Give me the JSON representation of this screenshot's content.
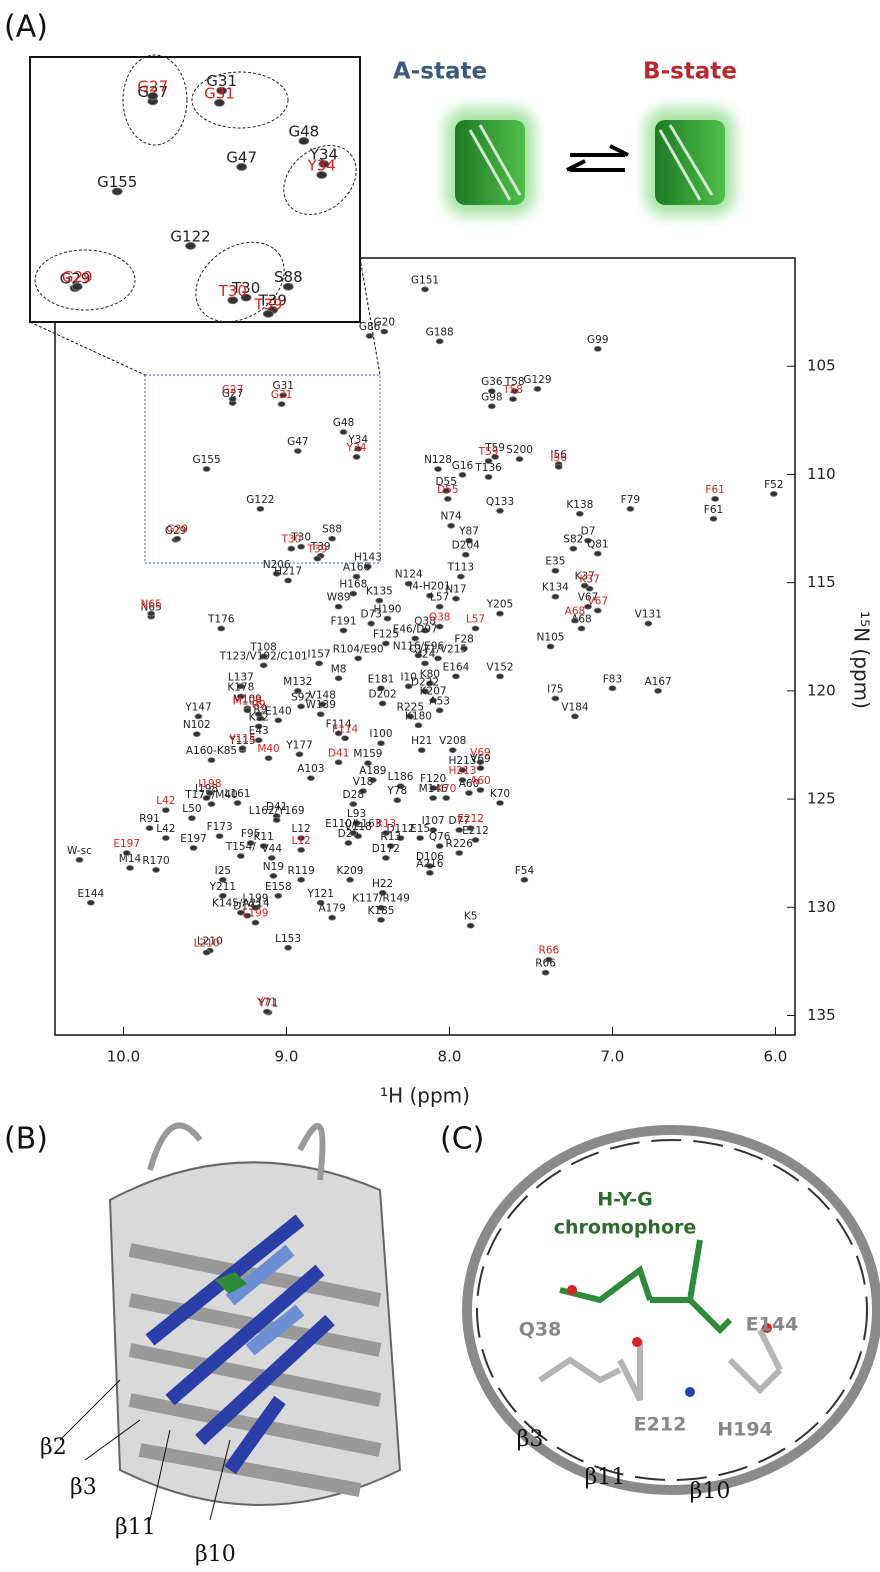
{
  "figure": {
    "panel_a": "(A)",
    "panel_b": "(B)",
    "panel_c": "(C)",
    "panel_b_labels": [
      "β2",
      "β3",
      "β11",
      "β10"
    ],
    "panel_c_title": [
      "H-Y-G",
      "chromophore"
    ],
    "panel_c_residues": [
      "Q38",
      "E144",
      "E212",
      "H194"
    ],
    "panel_c_strands": [
      "β3",
      "β11",
      "β10"
    ]
  },
  "chart_data": {
    "type": "scatter",
    "xlabel": "¹H (ppm)",
    "ylabel": "¹⁵N (ppm)",
    "xlim": [
      10.42,
      5.88
    ],
    "ylim": [
      100,
      135.9
    ],
    "y_inverted": true,
    "xticks": [
      {
        "value": 10,
        "label": "10.0"
      },
      {
        "value": 9,
        "label": "9.0"
      },
      {
        "value": 8,
        "label": "8.0"
      },
      {
        "value": 7,
        "label": "7.0"
      },
      {
        "value": 6,
        "label": "6.0"
      }
    ],
    "yticks": [
      105,
      110,
      115,
      120,
      125,
      130,
      135
    ],
    "inset": {
      "xlim": [
        9.86,
        8.42
      ],
      "ylim": [
        105.37,
        114.03
      ]
    },
    "series": [
      {
        "name": "A-state",
        "color": "#222222",
        "labels": [
          "G151",
          "G20",
          "G86",
          "G188",
          "G99",
          "G36",
          "T58",
          "G129",
          "G98",
          "G27",
          "G31",
          "G48",
          "G47",
          "Y34",
          "G155",
          "G122",
          "G29",
          "T30",
          "S88",
          "T39",
          "H143",
          "T59",
          "S200",
          "I56",
          "N128",
          "G16",
          "T136",
          "D55",
          "Q133",
          "K138",
          "F79",
          "F61",
          "F52",
          "N74",
          "Y87",
          "D7",
          "Q81",
          "S82",
          "D204",
          "E35",
          "K37",
          "T113",
          "N206",
          "H217",
          "A166",
          "N124",
          "I4-H201",
          "N17",
          "K134",
          "H168",
          "K135",
          "W89",
          "L57",
          "Q38",
          "H190",
          "N65",
          "D73",
          "V67",
          "V131",
          "Y205",
          "T176",
          "F191",
          "A68",
          "F125",
          "F28",
          "T108",
          "N105",
          "T123/V192/C101",
          "I157",
          "R104/E90",
          "V24",
          "V152",
          "L137",
          "M8",
          "M132",
          "E181",
          "I10",
          "K80",
          "E164",
          "F83",
          "A167",
          "M109",
          "K178",
          "S92",
          "V148",
          "D222",
          "K207",
          "D202",
          "R225",
          "A53",
          "I75",
          "Y147",
          "R9",
          "K32",
          "E140",
          "W139",
          "V184",
          "N102",
          "K180",
          "E43",
          "F114",
          "Y115",
          "A160-K85",
          "Y177",
          "I100",
          "H21",
          "V208",
          "V69",
          "M159",
          "A103",
          "A189",
          "H213",
          "V18",
          "L186",
          "I198",
          "L161",
          "F120",
          "M146",
          "Y78",
          "D28",
          "A60",
          "K70",
          "D41",
          "L93",
          "V118",
          "D112",
          "I107",
          "D77",
          "L50",
          "R91",
          "L42",
          "F173",
          "F95",
          "K11",
          "E15",
          "E212",
          "W-sc",
          "E197",
          "T154/",
          "L12",
          "V44",
          "D26",
          "R13",
          "Q76",
          "R226",
          "D172",
          "D106",
          "M14",
          "R170",
          "I25",
          "N19",
          "R119",
          "K209",
          "A216",
          "F54",
          "H22",
          "E158",
          "Y121",
          "Y211",
          "E144",
          "K117/R149",
          "D193",
          "L199",
          "A179",
          "K185",
          "K5",
          "K145/A214",
          "L210",
          "L153",
          "R66",
          "Y71",
          "L162/Y169",
          "E110/L163",
          "E46/D97",
          "N116/E96",
          "C171/V215",
          "T175/M40"
        ],
        "x": [
          8.15,
          8.4,
          8.49,
          8.06,
          7.09,
          7.74,
          7.6,
          7.46,
          7.74,
          9.33,
          9.02,
          8.65,
          8.93,
          8.56,
          9.49,
          9.16,
          9.68,
          8.91,
          8.72,
          8.79,
          8.5,
          7.72,
          7.57,
          7.33,
          8.07,
          7.92,
          7.76,
          8.02,
          7.69,
          7.2,
          6.89,
          6.38,
          6.01,
          7.99,
          7.88,
          7.15,
          7.09,
          7.24,
          7.9,
          7.35,
          7.17,
          7.93,
          9.06,
          8.99,
          8.57,
          8.25,
          8.12,
          7.96,
          7.35,
          8.59,
          8.43,
          8.68,
          8.06,
          8.15,
          8.38,
          9.83,
          8.48,
          7.15,
          6.78,
          7.69,
          9.4,
          8.65,
          7.19,
          8.39,
          7.91,
          9.14,
          7.38,
          9.14,
          8.8,
          8.56,
          8.15,
          7.69,
          9.28,
          8.68,
          8.93,
          8.42,
          8.25,
          8.12,
          7.96,
          7.0,
          6.72,
          9.24,
          9.28,
          8.91,
          8.78,
          8.15,
          8.1,
          8.41,
          8.24,
          8.06,
          7.35,
          9.54,
          9.16,
          9.17,
          9.05,
          8.79,
          7.23,
          9.55,
          8.19,
          9.17,
          8.68,
          9.27,
          9.46,
          8.92,
          8.42,
          8.17,
          7.98,
          7.81,
          8.5,
          8.85,
          8.47,
          7.92,
          8.53,
          8.3,
          9.49,
          9.3,
          8.1,
          8.1,
          8.32,
          8.59,
          7.88,
          7.69,
          9.06,
          8.57,
          8.56,
          8.3,
          8.1,
          7.94,
          9.58,
          9.84,
          9.74,
          9.41,
          9.22,
          9.14,
          8.18,
          7.84,
          10.27,
          9.57,
          9.28,
          8.91,
          9.09,
          8.62,
          8.36,
          8.06,
          7.94,
          8.39,
          8.12,
          9.96,
          9.8,
          9.39,
          9.08,
          8.91,
          8.61,
          8.12,
          7.54,
          8.41,
          9.05,
          8.79,
          9.39,
          10.2,
          8.42,
          9.24,
          9.19,
          8.72,
          8.42,
          7.87,
          9.28,
          9.47,
          8.99,
          7.41,
          9.11,
          9.06,
          8.59,
          8.21,
          8.19,
          8.07,
          9.46
        ],
        "y": [
          101.45,
          103.4,
          103.6,
          103.85,
          104.2,
          106.15,
          106.15,
          106.05,
          106.85,
          106.7,
          106.34,
          108.04,
          108.92,
          108.82,
          109.75,
          111.59,
          113.02,
          113.34,
          112.97,
          113.76,
          114.26,
          109.19,
          109.29,
          109.52,
          109.75,
          110.02,
          110.12,
          110.76,
          111.68,
          111.82,
          111.59,
          112.05,
          110.9,
          112.37,
          113.06,
          113.06,
          113.66,
          113.43,
          113.71,
          114.45,
          115.14,
          114.72,
          114.59,
          114.9,
          114.72,
          115.05,
          115.6,
          115.74,
          115.65,
          115.51,
          115.83,
          116.11,
          116.11,
          117.21,
          116.66,
          116.57,
          116.89,
          116.11,
          116.89,
          116.43,
          117.12,
          117.21,
          117.12,
          117.81,
          118.04,
          118.41,
          117.95,
          118.82,
          118.73,
          118.5,
          118.73,
          119.33,
          119.79,
          119.42,
          120.0,
          119.88,
          119.79,
          119.65,
          119.33,
          119.88,
          120.0,
          120.81,
          120.26,
          120.72,
          120.62,
          120.02,
          120.44,
          120.58,
          121.18,
          120.9,
          120.35,
          121.18,
          121.27,
          121.64,
          121.36,
          121.08,
          121.18,
          122.0,
          121.59,
          122.28,
          121.96,
          122.74,
          123.2,
          122.93,
          122.42,
          122.74,
          122.74,
          123.57,
          123.34,
          124.03,
          124.12,
          123.66,
          124.63,
          124.4,
          124.95,
          125.18,
          124.49,
          124.95,
          125.05,
          125.23,
          124.72,
          125.18,
          125.78,
          126.11,
          126.71,
          126.8,
          126.43,
          126.43,
          125.88,
          126.34,
          126.8,
          126.71,
          127.03,
          127.17,
          126.8,
          126.89,
          127.81,
          127.26,
          127.63,
          126.8,
          127.72,
          127.03,
          127.17,
          127.17,
          127.49,
          127.72,
          128.09,
          128.18,
          128.27,
          128.73,
          128.55,
          128.73,
          128.73,
          128.41,
          128.73,
          129.33,
          129.47,
          129.79,
          129.47,
          129.79,
          130.02,
          130.39,
          130.02,
          130.48,
          130.58,
          130.85,
          130.25,
          132.0,
          131.87,
          133.02,
          134.86,
          125.97,
          126.57,
          117.58,
          118.36,
          118.5,
          125.23
        ]
      },
      {
        "name": "B-state",
        "color": "#e0201b",
        "labels": [
          "G27",
          "G31",
          "Y34",
          "G29",
          "T30",
          "T39",
          "N65",
          "M109",
          "R9",
          "Y115",
          "M40",
          "F114",
          "D41",
          "I198",
          "L42",
          "E197",
          "L12",
          "R13",
          "L199",
          "L210",
          "Y71",
          "T58",
          "T59",
          "I56",
          "D55",
          "F61",
          "K37",
          "V67",
          "A68",
          "Q38",
          "L57",
          "V69",
          "H213",
          "A60",
          "K70",
          "E212",
          "R66"
        ],
        "x": [
          9.33,
          9.03,
          8.57,
          9.67,
          8.97,
          8.81,
          9.83,
          9.24,
          9.17,
          9.27,
          9.11,
          8.64,
          8.68,
          9.47,
          9.74,
          9.98,
          8.91,
          8.39,
          9.19,
          9.49,
          9.12,
          7.61,
          7.76,
          7.33,
          8.01,
          6.37,
          7.14,
          7.09,
          7.23,
          8.06,
          7.84,
          7.81,
          7.92,
          7.81,
          8.02,
          7.87,
          7.39
        ],
        "y": [
          106.52,
          106.75,
          109.19,
          112.97,
          113.43,
          113.89,
          116.43,
          120.9,
          121.08,
          122.65,
          123.11,
          122.19,
          123.3,
          124.72,
          125.51,
          127.49,
          127.35,
          126.57,
          130.71,
          132.09,
          134.82,
          106.52,
          109.38,
          109.65,
          111.13,
          111.13,
          115.28,
          116.29,
          116.75,
          117.03,
          117.12,
          123.29,
          124.12,
          124.58,
          124.95,
          126.34,
          132.42
        ]
      }
    ]
  }
}
